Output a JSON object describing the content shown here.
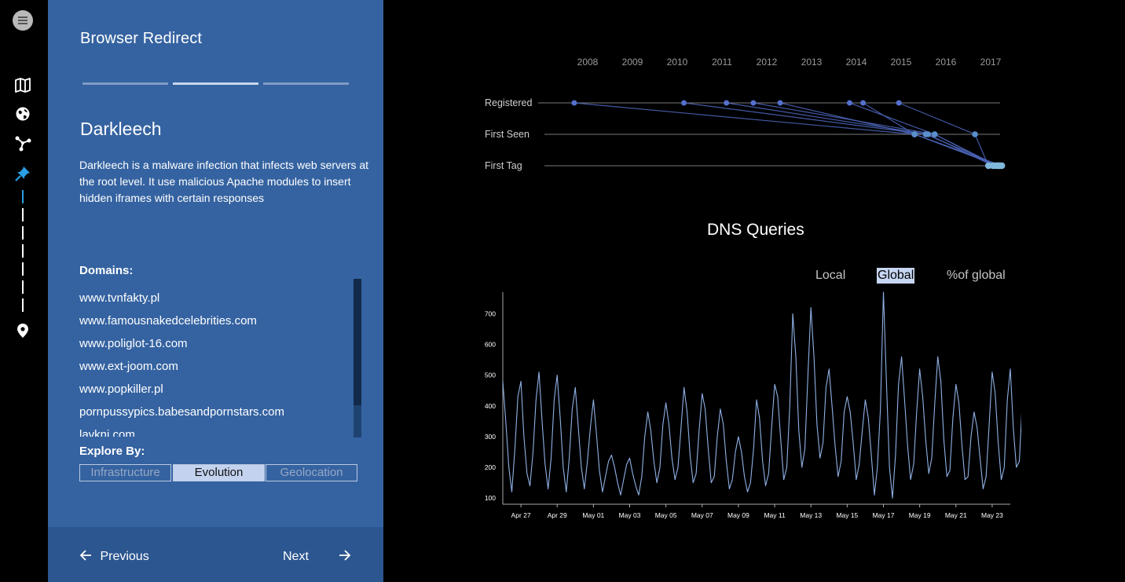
{
  "nav": {
    "menu_icon": "hamburger-menu-icon",
    "icons": [
      "map-icon",
      "globe-icon",
      "network-graph-icon",
      "pin-icon",
      "location-marker-icon"
    ]
  },
  "panel": {
    "title": "Browser Redirect",
    "progress": {
      "total": 3,
      "active": 1
    },
    "story_name": "Darkleech",
    "description": "Darkleech is a malware infection that infects web servers at the root level. It use malicious Apache modules to insert hidden iframes with certain responses",
    "domains_label": "Domains:",
    "domains": [
      "www.tvnfakty.pl",
      "www.famousnakedcelebrities.com",
      "www.poliglot-16.com",
      "www.ext-joom.com",
      "www.popkiller.pl",
      "pornpussypics.babesandpornstars.com",
      "lavkni.com"
    ],
    "explore_label": "Explore By:",
    "explore_options": [
      "Infrastructure",
      "Evolution",
      "Geolocation"
    ],
    "explore_selected": "Evolution",
    "previous_label": "Previous",
    "next_label": "Next",
    "colors": {
      "panel_bg": "#3563a1",
      "footer_bg": "#2c5690",
      "accent": "#2b9fe4"
    }
  },
  "timeline": {
    "years": [
      "2008",
      "2009",
      "2010",
      "2011",
      "2012",
      "2013",
      "2014",
      "2015",
      "2016",
      "2017"
    ],
    "rows": [
      "Registered",
      "First Seen",
      "First Tag"
    ],
    "domains": [
      {
        "registered": 2007.7,
        "first_seen": 2015.3,
        "first_tag": 2017.15
      },
      {
        "registered": 2010.15,
        "first_seen": 2015.55,
        "first_tag": 2017.2
      },
      {
        "registered": 2011.1,
        "first_seen": 2015.6,
        "first_tag": 2017.05
      },
      {
        "registered": 2011.7,
        "first_seen": 2015.75,
        "first_tag": 2017.1
      },
      {
        "registered": 2012.3,
        "first_seen": 2015.3,
        "first_tag": 2017.25
      },
      {
        "registered": 2013.85,
        "first_seen": 2015.75,
        "first_tag": 2017.15
      },
      {
        "registered": 2014.15,
        "first_seen": 2015.3,
        "first_tag": 2017.2
      },
      {
        "registered": 2014.95,
        "first_seen": 2016.65,
        "first_tag": 2016.95
      }
    ]
  },
  "dns": {
    "title": "DNS Queries",
    "toggles": [
      "Local",
      "Global",
      "%of global"
    ],
    "selected": "Global"
  },
  "chart_data": {
    "type": "line",
    "title": "DNS Queries",
    "xlabel": "",
    "ylabel": "",
    "ylim": [
      80,
      770
    ],
    "yticks": [
      100,
      200,
      300,
      400,
      500,
      600,
      700
    ],
    "x_tick_labels": [
      "Apr 27",
      "Apr 29",
      "May 01",
      "May 03",
      "May 05",
      "May 07",
      "May 09",
      "May 11",
      "May 13",
      "May 15",
      "May 17",
      "May 19",
      "May 21",
      "May 23"
    ],
    "x_start_day": 0,
    "x_end_day": 28,
    "series": [
      {
        "color": "#8fb1e5",
        "points_per_day": 6,
        "values": [
          480,
          350,
          200,
          120,
          260,
          430,
          480,
          300,
          180,
          140,
          250,
          420,
          510,
          350,
          210,
          130,
          230,
          420,
          500,
          360,
          200,
          120,
          230,
          390,
          460,
          330,
          200,
          130,
          220,
          330,
          420,
          310,
          190,
          120,
          170,
          220,
          240,
          200,
          150,
          110,
          160,
          210,
          230,
          180,
          140,
          110,
          170,
          300,
          380,
          320,
          220,
          150,
          200,
          340,
          410,
          340,
          230,
          160,
          200,
          330,
          460,
          380,
          240,
          150,
          180,
          320,
          440,
          390,
          260,
          150,
          170,
          300,
          390,
          340,
          220,
          130,
          160,
          250,
          300,
          250,
          170,
          120,
          150,
          260,
          420,
          360,
          220,
          140,
          180,
          330,
          470,
          430,
          290,
          160,
          200,
          400,
          700,
          560,
          320,
          200,
          260,
          500,
          720,
          560,
          340,
          230,
          280,
          460,
          520,
          400,
          270,
          170,
          220,
          380,
          430,
          380,
          280,
          160,
          210,
          320,
          420,
          360,
          240,
          110,
          200,
          390,
          770,
          480,
          200,
          100,
          240,
          470,
          560,
          420,
          270,
          160,
          210,
          380,
          520,
          430,
          290,
          180,
          230,
          410,
          560,
          480,
          290,
          170,
          190,
          360,
          470,
          410,
          270,
          160,
          170,
          300,
          380,
          330,
          230,
          130,
          170,
          340,
          510,
          440,
          280,
          160,
          200,
          420,
          520,
          330,
          200,
          220,
          420
        ]
      }
    ]
  }
}
